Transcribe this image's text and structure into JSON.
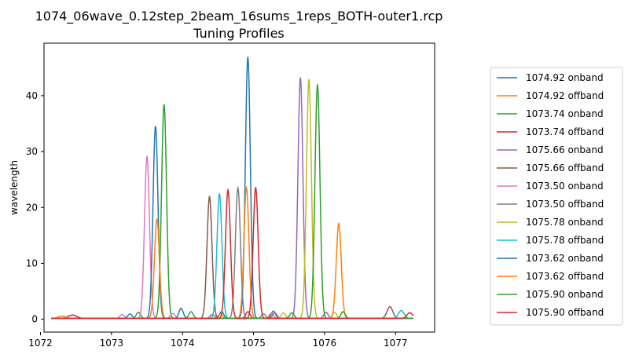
{
  "chart_data": {
    "type": "line",
    "title": "1074_06wave_0.12step_2beam_16sums_1reps_BOTH-outer1.rcp",
    "subtitle": "Tuning Profiles",
    "xlabel": "",
    "ylabel": "wavelength",
    "xlim": [
      1072.05,
      1077.55
    ],
    "ylim": [
      -2.3,
      49.4
    ],
    "xticks": [
      1072,
      1073,
      1074,
      1075,
      1076,
      1077
    ],
    "yticks": [
      0,
      10,
      20,
      30,
      40
    ],
    "grid": false,
    "legend_position": "right-outside",
    "series": [
      {
        "name": "1074.92 onband",
        "color": "#1f77b4",
        "peaks": [
          [
            1074.92,
            46.8,
            0.035
          ],
          [
            1074.55,
            1.2,
            0.03
          ],
          [
            1075.28,
            1.3,
            0.03
          ]
        ]
      },
      {
        "name": "1074.92 offband",
        "color": "#ff7f0e",
        "peaks": [
          [
            1074.9,
            23.4,
            0.035
          ],
          [
            1074.53,
            0.8,
            0.03
          ],
          [
            1075.25,
            0.9,
            0.03
          ]
        ]
      },
      {
        "name": "1073.74 onband",
        "color": "#2ca02c",
        "peaks": [
          [
            1073.74,
            38.3,
            0.035
          ],
          [
            1073.38,
            1.1,
            0.03
          ],
          [
            1074.12,
            1.2,
            0.03
          ]
        ]
      },
      {
        "name": "1073.74 offband",
        "color": "#d62728",
        "peaks": [
          [
            1072.45,
            0.6,
            0.06
          ],
          [
            1074.92,
            1.2,
            0.03
          ]
        ]
      },
      {
        "name": "1075.66 onband",
        "color": "#9467bd",
        "peaks": [
          [
            1075.66,
            43.1,
            0.035
          ],
          [
            1075.3,
            1.0,
            0.03
          ],
          [
            1076.02,
            1.1,
            0.03
          ]
        ]
      },
      {
        "name": "1075.66 offband",
        "color": "#8c564b",
        "peaks": [
          [
            1074.38,
            21.8,
            0.035
          ],
          [
            1076.92,
            2.1,
            0.04
          ]
        ]
      },
      {
        "name": "1073.50 onband",
        "color": "#e377c2",
        "peaks": [
          [
            1073.5,
            29.0,
            0.035
          ],
          [
            1073.15,
            0.7,
            0.03
          ],
          [
            1073.86,
            0.9,
            0.03
          ]
        ]
      },
      {
        "name": "1073.50 offband",
        "color": "#7f7f7f",
        "peaks": [
          [
            1074.78,
            23.4,
            0.035
          ],
          [
            1074.42,
            0.7,
            0.03
          ],
          [
            1075.14,
            0.8,
            0.03
          ]
        ]
      },
      {
        "name": "1075.78 onband",
        "color": "#bcbd22",
        "peaks": [
          [
            1075.78,
            42.8,
            0.035
          ],
          [
            1075.42,
            1.0,
            0.03
          ],
          [
            1076.14,
            1.1,
            0.03
          ]
        ]
      },
      {
        "name": "1075.78 offband",
        "color": "#17becf",
        "peaks": [
          [
            1074.52,
            22.3,
            0.035
          ],
          [
            1077.08,
            1.4,
            0.04
          ]
        ]
      },
      {
        "name": "1073.62 onband",
        "color": "#1f77b4",
        "peaks": [
          [
            1073.62,
            34.4,
            0.035
          ],
          [
            1073.26,
            0.8,
            0.03
          ],
          [
            1073.98,
            1.8,
            0.03
          ]
        ]
      },
      {
        "name": "1073.62 offband",
        "color": "#ff7f0e",
        "peaks": [
          [
            1073.64,
            17.8,
            0.035
          ],
          [
            1076.2,
            17.0,
            0.035
          ],
          [
            1072.3,
            0.4,
            0.05
          ]
        ]
      },
      {
        "name": "1075.90 onband",
        "color": "#2ca02c",
        "peaks": [
          [
            1075.9,
            41.8,
            0.035
          ],
          [
            1075.54,
            1.0,
            0.03
          ],
          [
            1076.26,
            1.2,
            0.03
          ]
        ]
      },
      {
        "name": "1075.90 offband",
        "color": "#d62728",
        "peaks": [
          [
            1074.64,
            23.0,
            0.035
          ],
          [
            1075.03,
            23.4,
            0.035
          ],
          [
            1077.2,
            1.0,
            0.04
          ]
        ]
      }
    ],
    "x_start": 1072.15,
    "x_end": 1077.25
  }
}
